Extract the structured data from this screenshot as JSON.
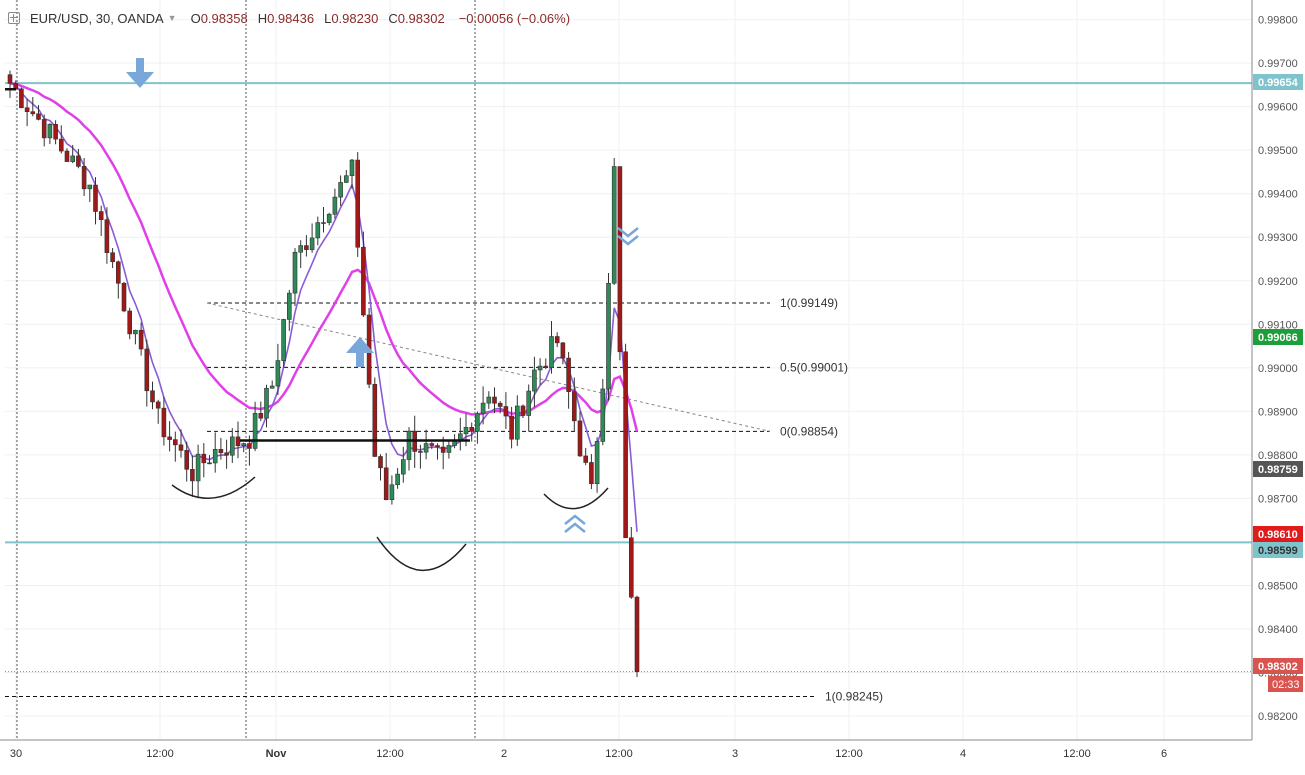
{
  "header": {
    "symbol": "EUR/USD, 30, OANDA",
    "open_label": "O",
    "open": "0.98358",
    "high_label": "H",
    "high": "0.98436",
    "low_label": "L",
    "low": "0.98230",
    "close_label": "C",
    "close": "0.98302",
    "change": "−0.00056 (−0.06%)"
  },
  "chart_data": {
    "type": "candlestick",
    "y_axis": {
      "range": [
        0.98145,
        0.99845
      ],
      "tick_labels": [
        "0.98200",
        "0.98300",
        "0.98400",
        "0.98500",
        "0.98600",
        "0.98700",
        "0.98800",
        "0.98900",
        "0.99000",
        "0.99100",
        "0.99200",
        "0.99300",
        "0.99400",
        "0.99500",
        "0.99600",
        "0.99700",
        "0.99800"
      ]
    },
    "x_axis": {
      "tick_labels": [
        "30",
        "12:00",
        "Nov",
        "12:00",
        "2",
        "12:00",
        "3",
        "12:00",
        "4",
        "12:00",
        "6"
      ]
    },
    "price_badges": [
      {
        "label": "0.99654",
        "color": "#7fc4cc",
        "text_color": "#ffffff"
      },
      {
        "label": "0.99066",
        "color": "#1e9e3a",
        "text_color": "#ffffff"
      },
      {
        "label": "0.98759",
        "color": "#555555",
        "text_color": "#ffffff"
      },
      {
        "label": "0.98610",
        "color": "#e01b1b",
        "text_color": "#ffffff"
      },
      {
        "label": "0.98599",
        "color": "#7fc4cc",
        "text_color": "#333333"
      },
      {
        "label": "0.98302",
        "color": "#d9534f",
        "text_color": "#ffffff"
      }
    ],
    "countdown": "02:33",
    "horizontal_lines": [
      {
        "value": 0.99654,
        "color": "#7fc4cc"
      },
      {
        "value": 0.98599,
        "color": "#7fc4cc"
      }
    ],
    "fib_levels": [
      {
        "label": "1(0.99149)",
        "value": 0.99149
      },
      {
        "label": "0.5(0.99001)",
        "value": 0.99001
      },
      {
        "label": "0(0.98854)",
        "value": 0.98854
      },
      {
        "label": "1(0.98245)",
        "value": 0.98245
      }
    ],
    "colors": {
      "up": "#2e8b57",
      "down": "#a01818",
      "ma_slow": "#e040e8",
      "ma_fast": "#8a5cd6",
      "accent_arrow": "#7aa7da"
    },
    "key_points": [
      [
        0,
        0.99654
      ],
      [
        8,
        0.9952
      ],
      [
        14,
        0.9942
      ],
      [
        20,
        0.9915
      ],
      [
        26,
        0.9888
      ],
      [
        32,
        0.9876
      ],
      [
        36,
        0.9881
      ],
      [
        42,
        0.9884
      ],
      [
        46,
        0.9896
      ],
      [
        50,
        0.9925
      ],
      [
        56,
        0.9938
      ],
      [
        60,
        0.9945
      ],
      [
        64,
        0.988
      ],
      [
        66,
        0.987
      ],
      [
        70,
        0.9884
      ],
      [
        76,
        0.9878
      ],
      [
        80,
        0.9886
      ],
      [
        84,
        0.9895
      ],
      [
        88,
        0.9885
      ],
      [
        92,
        0.9899
      ],
      [
        96,
        0.9906
      ],
      [
        100,
        0.9882
      ],
      [
        102,
        0.9871
      ],
      [
        104,
        0.9898
      ],
      [
        106,
        0.9945
      ],
      [
        108,
        0.986
      ],
      [
        110,
        0.98302
      ]
    ]
  }
}
